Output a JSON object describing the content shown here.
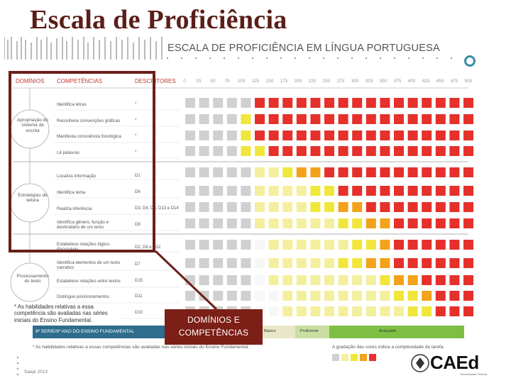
{
  "slide": {
    "title": "Escala de Proficiência",
    "scale_header": "ESCALA DE PROFICIÊNCIA EM LÍNGUA PORTUGUESA",
    "footer": "Saepi 2013"
  },
  "table": {
    "col_dominios": "DOMÍNIOS",
    "col_competencias": "COMPETÊNCIAS",
    "col_descritores": "DESCRITORES",
    "scale_values": [
      "0",
      "25",
      "50",
      "75",
      "100",
      "125",
      "150",
      "175",
      "200",
      "225",
      "250",
      "275",
      "300",
      "325",
      "350",
      "375",
      "400",
      "425",
      "450",
      "475",
      "500"
    ],
    "domains": [
      {
        "label": "Apropriação do sistema da escrita"
      },
      {
        "label": "Estratégias de leitura"
      },
      {
        "label": "Processamento do texto"
      }
    ],
    "competencies": [
      {
        "label": "Identifica letras",
        "descriptor": "*"
      },
      {
        "label": "Reconhece convenções gráficas",
        "descriptor": "*"
      },
      {
        "label": "Manifesta consciência fonológica",
        "descriptor": "*"
      },
      {
        "label": "Lê palavras",
        "descriptor": "*"
      },
      {
        "label": "Localiza informação",
        "descriptor": "D1"
      },
      {
        "label": "Identifica tema",
        "descriptor": "D6"
      },
      {
        "label": "Realiza inferência",
        "descriptor": "D3, D4, D5, D13 e D14"
      },
      {
        "label": "Identifica gênero, função e destinatário de um texto",
        "descriptor": "D9"
      },
      {
        "label": "Estabelece relações lógico-discursivas",
        "descriptor": "D2, D8 e D12"
      },
      {
        "label": "Identifica elementos de um texto narrativo",
        "descriptor": "D7"
      },
      {
        "label": "Estabelece relações entre textos",
        "descriptor": "D15"
      },
      {
        "label": "Distingue posicionamentos",
        "descriptor": "D11"
      },
      {
        "label": "",
        "descriptor": "D10"
      }
    ]
  },
  "callout": {
    "line1": "DOMÍNIOS E",
    "line2": "COMPETÊNCIAS"
  },
  "notes": {
    "left": "* As habilidades relativas a essa competência são avaliadas nas séries iniciais do Ensino Fundamental.",
    "bottom": "* As habilidades relativas a essas competências são avaliadas nas séries iniciais do Ensino Fundamental.",
    "bar_label": "9º SERIE/9º ANO DO ENSINO FUNDAMENTAL",
    "level_mid1": "Básico",
    "level_mid2": "Proficiente",
    "level_right": "Avançado",
    "legend": "A gradação das cores indica a complexidade da tarefa."
  },
  "logo": {
    "name": "CAEd",
    "tagline": "Universidade Federal"
  },
  "colors": {
    "title": "#5a1e18",
    "highlight_border": "#6b1f1a",
    "callout_bg": "#7c1f16",
    "grey": "#d0d0d0",
    "yellow_light": "#f4ef9e",
    "yellow": "#f1e63b",
    "orange": "#f3a21b",
    "red": "#e5302b",
    "green_bar": "#7dbf45",
    "blue_bar": "#2e6d8c",
    "accent_circle": "#3a8fa6"
  }
}
